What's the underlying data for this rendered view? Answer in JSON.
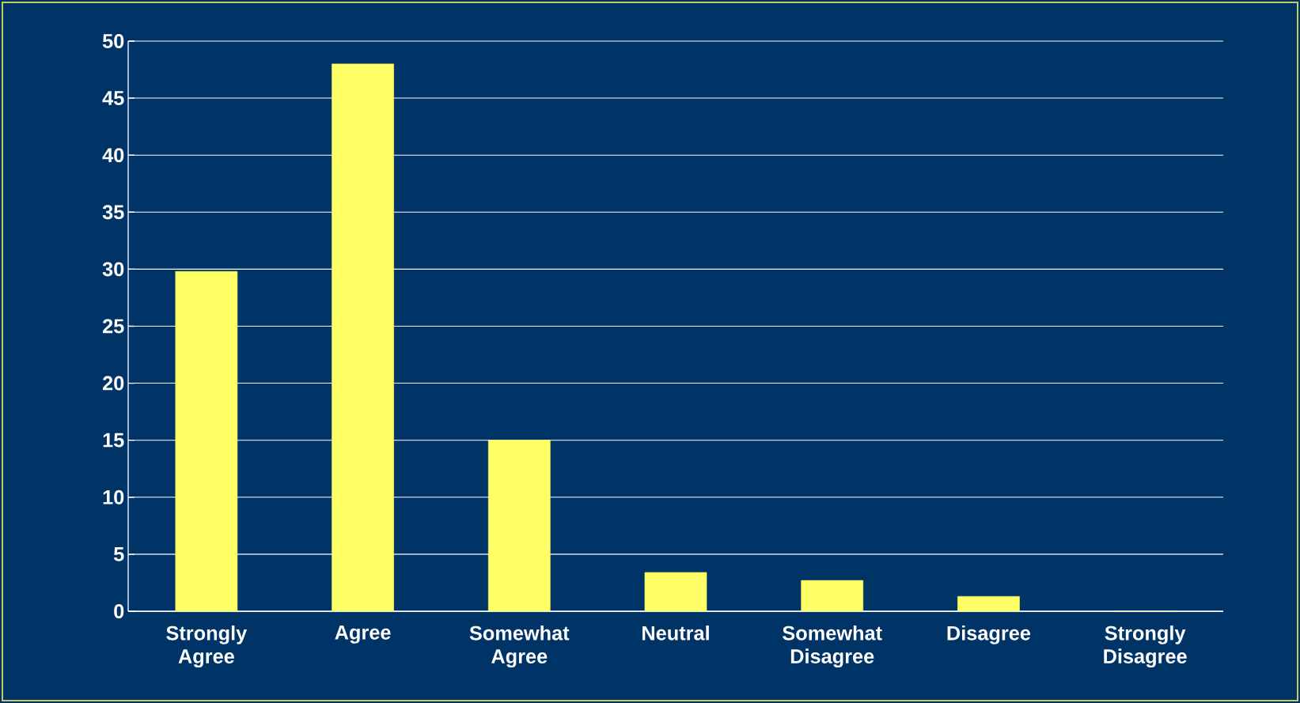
{
  "chart_data": {
    "type": "bar",
    "categories": [
      "Strongly Agree",
      "Agree",
      "Somewhat Agree",
      "Neutral",
      "Somewhat Disagree",
      "Disagree",
      "Strongly Disagree"
    ],
    "values": [
      29.8,
      48,
      15,
      3.4,
      2.7,
      1.3,
      0
    ],
    "color": "#ffff66",
    "ylim": [
      0,
      50
    ],
    "yticks": [
      0,
      5,
      10,
      15,
      20,
      25,
      30,
      35,
      40,
      45,
      50
    ],
    "grid": "y"
  }
}
